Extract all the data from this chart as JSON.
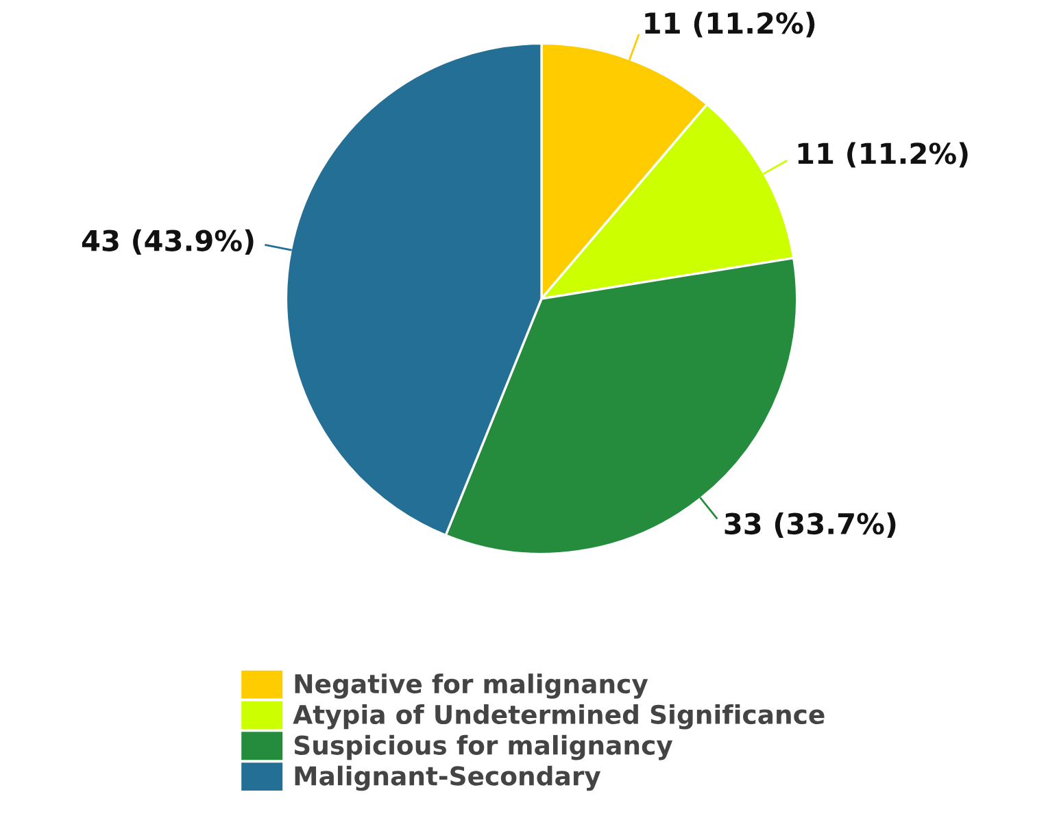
{
  "chart_data": {
    "type": "pie",
    "categories": [
      "Negative for malignancy",
      "Atypia of Undetermined Significance",
      "Suspicious for malignancy",
      "Malignant-Secondary"
    ],
    "values": [
      11,
      11,
      33,
      43
    ],
    "colors": [
      "#ffcc00",
      "#ccff00",
      "#248c3c",
      "#236f96"
    ],
    "value_labels": [
      "11 (11.2%)",
      "11 (11.2%)",
      "33 (33.7%)",
      "43 (43.9%)"
    ],
    "legend": "bottom"
  }
}
